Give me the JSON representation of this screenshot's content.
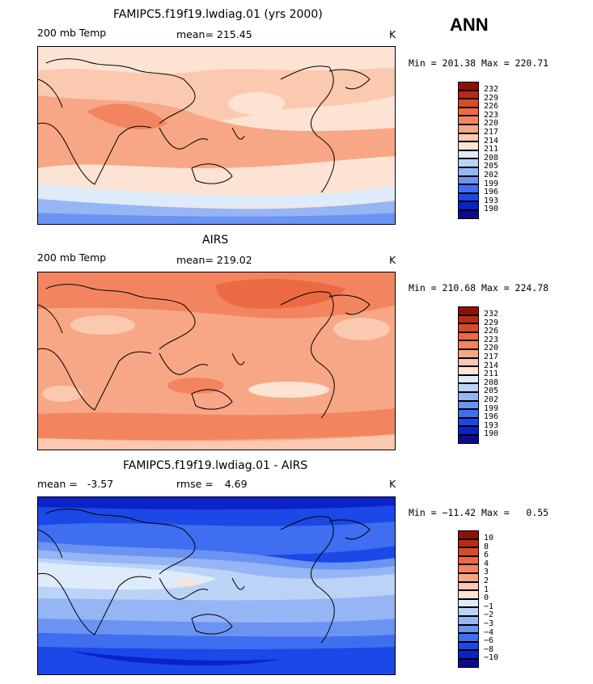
{
  "season": "ANN",
  "colors": {
    "temp_scale": [
      "#0b0b8f",
      "#0a22c8",
      "#1b48e6",
      "#3f6ff0",
      "#6b94f2",
      "#95b5f5",
      "#bcd3f8",
      "#deebfb",
      "#fde3d3",
      "#fbc9af",
      "#f7a785",
      "#f28560",
      "#ec6a43",
      "#d94b2a",
      "#b82b17",
      "#8e1108"
    ],
    "diff_scale": [
      "#0b0b8f",
      "#0a22c8",
      "#1b48e6",
      "#3f6ff0",
      "#6b94f2",
      "#95b5f5",
      "#bcd3f8",
      "#deebfb",
      "#fde3d3",
      "#fbc9af",
      "#f7a785",
      "#f28560",
      "#ec6a43",
      "#d94b2a",
      "#b82b17",
      "#8e1108"
    ]
  },
  "panels": [
    {
      "title": "FAMIPC5.f19f19.lwdiag.01 (yrs 2000)",
      "left_label": "200 mb Temp",
      "stat_label": "mean=",
      "stat_value": "215.45",
      "units": "K",
      "minmax": "Min = 201.38 Max = 220.71",
      "colorbar_labels": [
        "232",
        "229",
        "226",
        "223",
        "220",
        "217",
        "214",
        "211",
        "208",
        "205",
        "202",
        "199",
        "196",
        "193",
        "190"
      ]
    },
    {
      "title": "AIRS",
      "left_label": "200 mb Temp",
      "stat_label": "mean=",
      "stat_value": "219.02",
      "units": "K",
      "minmax": "Min = 210.68 Max = 224.78",
      "colorbar_labels": [
        "232",
        "229",
        "226",
        "223",
        "220",
        "217",
        "214",
        "211",
        "208",
        "205",
        "202",
        "199",
        "196",
        "193",
        "190"
      ]
    },
    {
      "title": "FAMIPC5.f19f19.lwdiag.01 - AIRS",
      "left_label": "mean =   -3.57",
      "stat_label": "rmse =",
      "stat_value": "4.69",
      "units": "K",
      "minmax": "Min = −11.42 Max =   0.55",
      "colorbar_labels": [
        "10",
        "8",
        "6",
        "4",
        "3",
        "2",
        "1",
        "0",
        "−1",
        "−2",
        "−3",
        "−4",
        "−6",
        "−8",
        "−10"
      ]
    }
  ]
}
